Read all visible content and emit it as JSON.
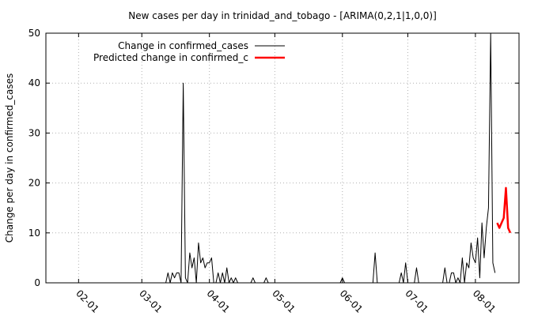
{
  "chart_data": {
    "type": "line",
    "title": "New cases per day in trinidad_and_tobago -  [ARIMA(0,2,1|1,0,0)]",
    "xlabel": "",
    "ylabel": "Change per day in confirmed_cases",
    "x_type": "date",
    "xlim": [
      "2020-01-17",
      "2020-08-21"
    ],
    "ylim": [
      0,
      50
    ],
    "yticks": [
      0,
      10,
      20,
      30,
      40,
      50
    ],
    "xticks": [
      {
        "date": "2020-02-01",
        "label": "02-01"
      },
      {
        "date": "2020-03-01",
        "label": "03-01"
      },
      {
        "date": "2020-04-01",
        "label": "04-01"
      },
      {
        "date": "2020-05-01",
        "label": "05-01"
      },
      {
        "date": "2020-06-01",
        "label": "06-01"
      },
      {
        "date": "2020-07-01",
        "label": "07-01"
      },
      {
        "date": "2020-08-01",
        "label": "08-01"
      }
    ],
    "grid": true,
    "legend_position": "top-left",
    "series": [
      {
        "name": "Change in confirmed_cases",
        "color": "#000000",
        "points": [
          [
            "2020-01-22",
            0
          ],
          [
            "2020-03-12",
            0
          ],
          [
            "2020-03-13",
            2
          ],
          [
            "2020-03-14",
            0
          ],
          [
            "2020-03-15",
            2
          ],
          [
            "2020-03-16",
            1
          ],
          [
            "2020-03-17",
            2
          ],
          [
            "2020-03-18",
            2
          ],
          [
            "2020-03-19",
            0
          ],
          [
            "2020-03-20",
            40
          ],
          [
            "2020-03-21",
            1
          ],
          [
            "2020-03-22",
            0
          ],
          [
            "2020-03-23",
            6
          ],
          [
            "2020-03-24",
            3
          ],
          [
            "2020-03-25",
            5
          ],
          [
            "2020-03-26",
            0
          ],
          [
            "2020-03-27",
            8
          ],
          [
            "2020-03-28",
            4
          ],
          [
            "2020-03-29",
            5
          ],
          [
            "2020-03-30",
            3
          ],
          [
            "2020-03-31",
            4
          ],
          [
            "2020-04-01",
            4
          ],
          [
            "2020-04-02",
            5
          ],
          [
            "2020-04-03",
            0
          ],
          [
            "2020-04-04",
            0
          ],
          [
            "2020-04-05",
            2
          ],
          [
            "2020-04-06",
            0
          ],
          [
            "2020-04-07",
            2
          ],
          [
            "2020-04-08",
            0
          ],
          [
            "2020-04-09",
            3
          ],
          [
            "2020-04-10",
            0
          ],
          [
            "2020-04-11",
            1
          ],
          [
            "2020-04-12",
            0
          ],
          [
            "2020-04-13",
            1
          ],
          [
            "2020-04-14",
            0
          ],
          [
            "2020-04-20",
            0
          ],
          [
            "2020-04-21",
            1
          ],
          [
            "2020-04-22",
            0
          ],
          [
            "2020-04-26",
            0
          ],
          [
            "2020-04-27",
            1
          ],
          [
            "2020-04-28",
            0
          ],
          [
            "2020-05-31",
            0
          ],
          [
            "2020-06-01",
            1
          ],
          [
            "2020-06-02",
            0
          ],
          [
            "2020-06-15",
            0
          ],
          [
            "2020-06-16",
            6
          ],
          [
            "2020-06-17",
            0
          ],
          [
            "2020-06-27",
            0
          ],
          [
            "2020-06-28",
            2
          ],
          [
            "2020-06-29",
            0
          ],
          [
            "2020-06-30",
            4
          ],
          [
            "2020-07-01",
            0
          ],
          [
            "2020-07-04",
            0
          ],
          [
            "2020-07-05",
            3
          ],
          [
            "2020-07-06",
            0
          ],
          [
            "2020-07-17",
            0
          ],
          [
            "2020-07-18",
            3
          ],
          [
            "2020-07-19",
            0
          ],
          [
            "2020-07-20",
            0
          ],
          [
            "2020-07-21",
            2
          ],
          [
            "2020-07-22",
            2
          ],
          [
            "2020-07-23",
            0
          ],
          [
            "2020-07-24",
            1
          ],
          [
            "2020-07-25",
            0
          ],
          [
            "2020-07-26",
            5
          ],
          [
            "2020-07-27",
            0
          ],
          [
            "2020-07-28",
            4
          ],
          [
            "2020-07-29",
            3
          ],
          [
            "2020-07-30",
            8
          ],
          [
            "2020-07-31",
            5
          ],
          [
            "2020-08-01",
            4
          ],
          [
            "2020-08-02",
            9
          ],
          [
            "2020-08-03",
            1
          ],
          [
            "2020-08-04",
            12
          ],
          [
            "2020-08-05",
            5
          ],
          [
            "2020-08-06",
            11
          ],
          [
            "2020-08-07",
            15
          ],
          [
            "2020-08-08",
            50
          ],
          [
            "2020-08-09",
            4
          ],
          [
            "2020-08-10",
            2
          ]
        ]
      },
      {
        "name": "Predicted change in confirmed_c",
        "color": "#ff0000",
        "points": [
          [
            "2020-08-11",
            12
          ],
          [
            "2020-08-12",
            11
          ],
          [
            "2020-08-13",
            12
          ],
          [
            "2020-08-14",
            13
          ],
          [
            "2020-08-15",
            19
          ],
          [
            "2020-08-16",
            11
          ],
          [
            "2020-08-17",
            10
          ]
        ]
      }
    ]
  }
}
